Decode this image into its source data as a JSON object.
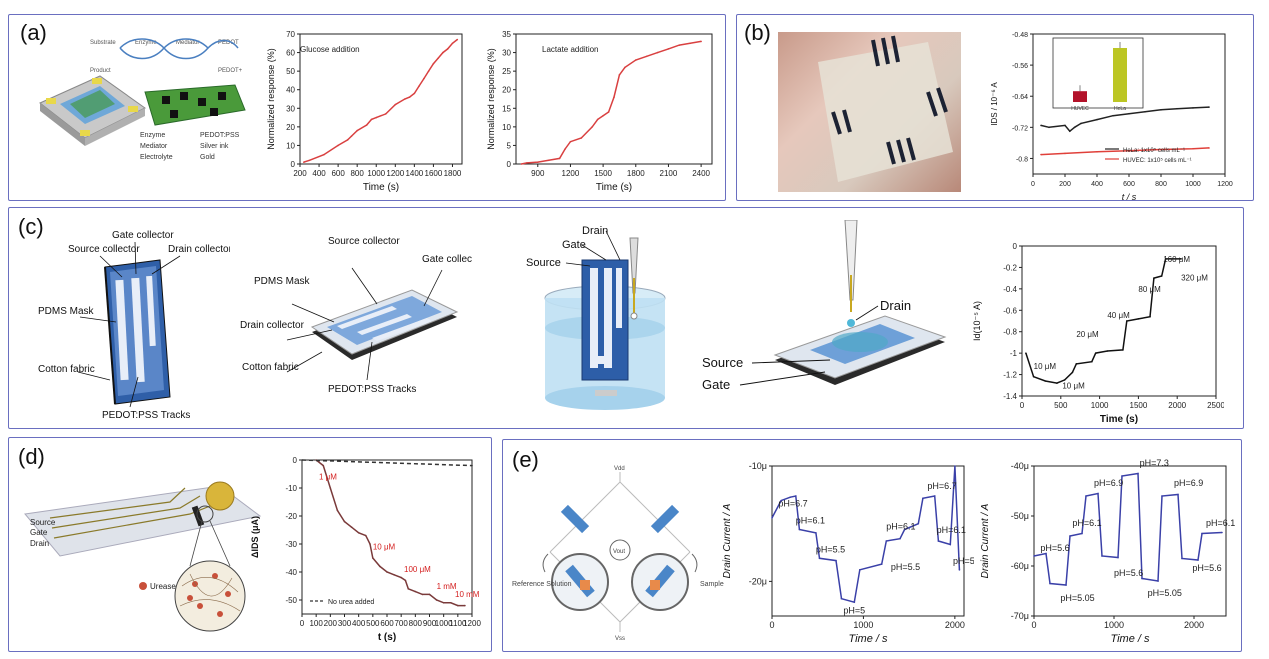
{
  "panels": {
    "a": {
      "label": "(a)"
    },
    "b": {
      "label": "(b)"
    },
    "c": {
      "label": "(c)"
    },
    "d": {
      "label": "(d)"
    },
    "e": {
      "label": "(e)"
    }
  },
  "a": {
    "device_legend": [
      "Enzyme",
      "PEDOT:PSS",
      "Mediator",
      "Silver ink",
      "Electrolyte",
      "Gold"
    ],
    "scheme_labels": [
      "Substrate",
      "Enzyme",
      "Mediator",
      "PEDOT",
      "Product",
      "PEDOT+"
    ]
  },
  "b": {
    "inset_labels": [
      "HUVEC",
      "HeLa"
    ]
  },
  "c": {
    "diagram1": {
      "labels": [
        "Source collector",
        "Gate collector",
        "Drain collector",
        "PDMS Mask",
        "Cotton fabric",
        "PEDOT:PSS Tracks"
      ]
    },
    "diagram2": {
      "labels": [
        "Source collector",
        "Gate collector",
        "PDMS Mask",
        "Drain collector",
        "Cotton fabric",
        "PEDOT:PSS Tracks"
      ]
    },
    "diagram3": {
      "labels": [
        "Drain",
        "Gate",
        "Source"
      ]
    },
    "diagram4": {
      "labels": [
        "Drain",
        "Source",
        "Gate"
      ]
    }
  },
  "d": {
    "device_labels": [
      "Source",
      "Gate",
      "Drain",
      "Urease"
    ]
  },
  "e": {
    "circuit_labels": [
      "Vdd",
      "Vout",
      "Vss",
      "Reference Solution",
      "Sample"
    ]
  },
  "chart_data": [
    {
      "id": "a1",
      "type": "line",
      "xlabel": "Time (s)",
      "ylabel": "Normalized response (%)",
      "xlim": [
        200,
        1900
      ],
      "ylim": [
        0,
        70
      ],
      "xticks": [
        200,
        400,
        600,
        800,
        1000,
        1200,
        1400,
        1600,
        1800
      ],
      "yticks": [
        0,
        10,
        20,
        30,
        40,
        50,
        60,
        70
      ],
      "annotations": [
        "Glucose addition"
      ],
      "series": [
        {
          "x": [
            240,
            300,
            450,
            600,
            700,
            740,
            800,
            900,
            950,
            1000,
            1100,
            1200,
            1300,
            1350,
            1400,
            1450,
            1500,
            1550,
            1600,
            1650,
            1700,
            1750,
            1800,
            1850
          ],
          "y": [
            1,
            2,
            5,
            10,
            13,
            15,
            18,
            21,
            24,
            25,
            27,
            32,
            35,
            36,
            38,
            42,
            46,
            50,
            54,
            57,
            60,
            62,
            65,
            67
          ]
        }
      ]
    },
    {
      "id": "a2",
      "type": "line",
      "xlabel": "Time (s)",
      "ylabel": "Normalized response (%)",
      "xlim": [
        700,
        2500
      ],
      "ylim": [
        0,
        35
      ],
      "xticks": [
        900,
        1200,
        1500,
        1800,
        2100,
        2400
      ],
      "yticks": [
        0,
        5,
        10,
        15,
        20,
        25,
        30,
        35
      ],
      "annotations": [
        "Lactate addition"
      ],
      "series": [
        {
          "x": [
            750,
            800,
            900,
            1000,
            1100,
            1150,
            1200,
            1300,
            1400,
            1450,
            1500,
            1550,
            1600,
            1650,
            1700,
            1800,
            1900,
            2000,
            2100,
            2200,
            2300,
            2400
          ],
          "y": [
            0,
            0.3,
            0.5,
            1,
            1.5,
            4,
            6,
            7,
            10,
            12,
            13,
            14,
            18,
            24,
            26,
            28,
            29,
            30,
            31,
            32,
            32.5,
            33
          ]
        }
      ]
    },
    {
      "id": "b1",
      "type": "line",
      "xlabel": "t / s",
      "ylabel": "IDS / 10⁻⁶ A",
      "xlim": [
        0,
        1200
      ],
      "ylim": [
        -0.84,
        -0.48
      ],
      "xticks": [
        0,
        200,
        400,
        600,
        800,
        1000,
        1200
      ],
      "yticks": [
        -0.48,
        -0.56,
        -0.64,
        -0.72,
        -0.8
      ],
      "legend": [
        "HeLa: 1x10⁵ cells mL⁻¹",
        "HUVEC: 1x10⁵ cells mL⁻¹"
      ],
      "series": [
        {
          "name": "HeLa: 1x10⁵ cells mL⁻¹",
          "color": "#222222",
          "x": [
            50,
            100,
            200,
            230,
            260,
            300,
            400,
            500,
            600,
            700,
            800,
            900,
            1000,
            1100
          ],
          "y": [
            -0.715,
            -0.72,
            -0.715,
            -0.73,
            -0.72,
            -0.71,
            -0.7,
            -0.69,
            -0.685,
            -0.68,
            -0.675,
            -0.672,
            -0.67,
            -0.668
          ]
        },
        {
          "name": "HUVEC: 1x10⁵ cells mL⁻¹",
          "color": "#e0403a",
          "x": [
            50,
            200,
            400,
            600,
            800,
            1000,
            1100
          ],
          "y": [
            -0.79,
            -0.787,
            -0.783,
            -0.78,
            -0.777,
            -0.775,
            -0.773
          ]
        }
      ]
    },
    {
      "id": "b-inset",
      "type": "bar",
      "categories": [
        "HUVEC",
        "HeLa"
      ],
      "values": [
        0.2,
        1.0
      ],
      "colors": [
        "#b3122a",
        "#bcc624"
      ]
    },
    {
      "id": "c1",
      "type": "line",
      "xlabel": "Time (s)",
      "ylabel": "Id(10⁻⁵ A)",
      "xlim": [
        0,
        2500
      ],
      "ylim": [
        -1.4,
        0.0
      ],
      "xticks": [
        0,
        500,
        1000,
        1500,
        2000,
        2500
      ],
      "yticks": [
        0.0,
        -0.2,
        -0.4,
        -0.6,
        -0.8,
        -1.0,
        -1.2,
        -1.4
      ],
      "annotations": [
        "10 μM",
        "10 μM",
        "20 μM",
        "40 μM",
        "80 μM",
        "160 μM",
        "320 μM"
      ],
      "series": [
        {
          "x": [
            50,
            150,
            300,
            450,
            550,
            650,
            700,
            900,
            950,
            1100,
            1300,
            1350,
            1500,
            1650,
            1700,
            1800,
            1850,
            2050
          ],
          "y": [
            -1.0,
            -1.22,
            -1.26,
            -1.28,
            -1.25,
            -1.18,
            -1.1,
            -1.08,
            -1.0,
            -0.98,
            -0.97,
            -0.7,
            -0.68,
            -0.66,
            -0.3,
            -0.28,
            -0.12,
            -0.12
          ]
        }
      ]
    },
    {
      "id": "d1",
      "type": "line",
      "xlabel": "t (s)",
      "ylabel": "ΔIDS (μA)",
      "xlim": [
        0,
        1200
      ],
      "ylim": [
        -55,
        0
      ],
      "xticks": [
        0,
        100,
        200,
        300,
        400,
        500,
        600,
        700,
        800,
        900,
        1000,
        1100,
        1200
      ],
      "yticks": [
        0,
        -10,
        -20,
        -30,
        -40,
        -50
      ],
      "legend": [
        "No urea added"
      ],
      "annotations": [
        "1 μM",
        "10 μM",
        "100 μM",
        "1 mM",
        "10 mM"
      ],
      "series": [
        {
          "name": "urea",
          "color": "#7a3a3a",
          "x": [
            100,
            150,
            200,
            250,
            300,
            350,
            400,
            450,
            480,
            500,
            550,
            600,
            650,
            700,
            730,
            750,
            800,
            850,
            900,
            950,
            1000,
            1050,
            1100,
            1150
          ],
          "y": [
            0,
            -2,
            -10,
            -18,
            -22,
            -24,
            -26,
            -27,
            -30,
            -35,
            -38,
            -40,
            -41,
            -42,
            -43,
            -46,
            -47,
            -48,
            -48,
            -50,
            -51,
            -51,
            -52,
            -52
          ]
        },
        {
          "name": "No urea added",
          "color": "#333333",
          "dash": true,
          "x": [
            0,
            1200
          ],
          "y": [
            0,
            -2
          ]
        }
      ]
    },
    {
      "id": "e1",
      "type": "line",
      "xlabel": "Time / s",
      "ylabel": "Drain Current / A",
      "xlim": [
        0,
        2100
      ],
      "ylim": [
        -23,
        -10
      ],
      "xticks": [
        0,
        1000,
        2000
      ],
      "xticklabels": [
        "0",
        "1000",
        "2000"
      ],
      "yticks": [
        -10,
        -20
      ],
      "yticklabels": [
        "-10μ",
        "-20μ"
      ],
      "annotations": [
        "pH=6.7",
        "pH=6.1",
        "pH=5.5",
        "pH=5",
        "pH=6.1",
        "pH=5.5",
        "pH=6.7",
        "pH=6.1",
        "pH=5.5"
      ],
      "series": [
        {
          "x": [
            0,
            100,
            200,
            260,
            300,
            480,
            520,
            700,
            760,
            900,
            960,
            1200,
            1250,
            1400,
            1450,
            1600,
            1650,
            1780,
            1820,
            1950,
            2000,
            2050
          ],
          "y": [
            -14.5,
            -13,
            -12.7,
            -12.6,
            -15.5,
            -15.8,
            -18,
            -18.2,
            -21.5,
            -21.8,
            -19,
            -18.5,
            -16.5,
            -16.3,
            -15.5,
            -15,
            -12.8,
            -12.6,
            -16.5,
            -16.8,
            -10,
            -19
          ]
        }
      ]
    },
    {
      "id": "e2",
      "type": "line",
      "xlabel": "Time / s",
      "ylabel": "Drain Current / A",
      "xlim": [
        0,
        2400
      ],
      "ylim": [
        -70,
        -40
      ],
      "xticks": [
        0,
        1000,
        2000
      ],
      "xticklabels": [
        "0",
        "1000",
        "2000"
      ],
      "yticks": [
        -40,
        -50,
        -60,
        -70
      ],
      "yticklabels": [
        "-40μ",
        "-50μ",
        "-60μ",
        "-70μ"
      ],
      "annotations": [
        "pH=5.6",
        "pH=5.05",
        "pH=6.1",
        "pH=6.9",
        "pH=5.6",
        "pH=7.3",
        "pH=5.05",
        "pH=6.9",
        "pH=5.6",
        "pH=6.1"
      ],
      "series": [
        {
          "x": [
            0,
            150,
            200,
            400,
            450,
            600,
            650,
            800,
            850,
            1050,
            1100,
            1300,
            1350,
            1550,
            1600,
            1800,
            1850,
            2050,
            2100,
            2350
          ],
          "y": [
            -58,
            -57.5,
            -63.5,
            -63.8,
            -54,
            -53.5,
            -46,
            -45.5,
            -58,
            -58.3,
            -42,
            -41.5,
            -62.5,
            -63,
            -46,
            -45.7,
            -58.5,
            -58.8,
            -53.5,
            -53.3
          ]
        }
      ]
    }
  ]
}
